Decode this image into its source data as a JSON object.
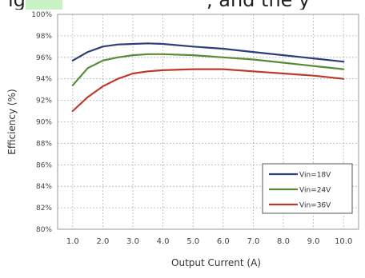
{
  "page": {
    "top_fragment_left": "ig",
    "top_fragment_right": ", and the y"
  },
  "chart_data": {
    "type": "line",
    "xlabel": "Output Current (A)",
    "ylabel": "Efficiency (%)",
    "x_ticks": [
      "1.0",
      "2.0",
      "3.0",
      "4.0",
      "5.0",
      "6.0",
      "7.0",
      "8.0",
      "9.0",
      "10.0"
    ],
    "y_ticks": [
      "80%",
      "82%",
      "84%",
      "86%",
      "88%",
      "90%",
      "92%",
      "94%",
      "96%",
      "98%",
      "100%"
    ],
    "xlim": [
      0.5,
      10.5
    ],
    "ylim": [
      80,
      100
    ],
    "grid": true,
    "legend_position": "bottom-right",
    "series": [
      {
        "name": "Vin=18V",
        "color": "#2b3f7a",
        "x": [
          1.0,
          1.5,
          2.0,
          2.5,
          3.0,
          3.5,
          4.0,
          5.0,
          6.0,
          7.0,
          8.0,
          9.0,
          10.0
        ],
        "y": [
          95.7,
          96.5,
          97.0,
          97.2,
          97.25,
          97.3,
          97.25,
          97.0,
          96.8,
          96.5,
          96.2,
          95.9,
          95.6
        ]
      },
      {
        "name": "Vin=24V",
        "color": "#5a8a35",
        "x": [
          1.0,
          1.5,
          2.0,
          2.5,
          3.0,
          3.5,
          4.0,
          5.0,
          6.0,
          7.0,
          8.0,
          9.0,
          10.0
        ],
        "y": [
          93.4,
          95.0,
          95.7,
          96.0,
          96.2,
          96.3,
          96.3,
          96.2,
          96.0,
          95.8,
          95.5,
          95.2,
          94.9
        ]
      },
      {
        "name": "Vin=36V",
        "color": "#c0392b",
        "x": [
          1.0,
          1.5,
          2.0,
          2.5,
          3.0,
          3.5,
          4.0,
          5.0,
          6.0,
          7.0,
          8.0,
          9.0,
          10.0
        ],
        "y": [
          91.0,
          92.3,
          93.3,
          94.0,
          94.5,
          94.7,
          94.8,
          94.9,
          94.9,
          94.7,
          94.5,
          94.3,
          94.0
        ]
      }
    ]
  }
}
